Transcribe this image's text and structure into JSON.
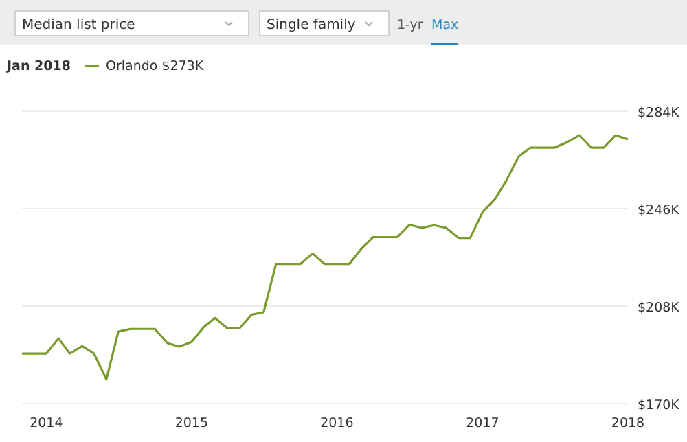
{
  "chart_data": {
    "type": "line",
    "legend_title": "Jan 2018",
    "legend": "top left",
    "grid": "y",
    "marker": "none",
    "line_style": "solid",
    "annotations": [
      "Median list price",
      "Single family",
      "1-yr",
      "Max"
    ],
    "x": [
      "2013-11",
      "2013-12",
      "2014-01",
      "2014-02",
      "2014-03",
      "2014-04",
      "2014-05",
      "2014-06",
      "2014-07",
      "2014-08",
      "2014-09",
      "2014-10",
      "2014-11",
      "2014-12",
      "2015-01",
      "2015-02",
      "2015-03",
      "2015-04",
      "2015-05",
      "2015-06",
      "2015-07",
      "2015-08",
      "2015-09",
      "2015-10",
      "2015-11",
      "2015-12",
      "2016-01",
      "2016-02",
      "2016-03",
      "2016-04",
      "2016-05",
      "2016-06",
      "2016-07",
      "2016-08",
      "2016-09",
      "2016-10",
      "2016-11",
      "2016-12",
      "2017-01",
      "2017-02",
      "2017-03",
      "2017-04",
      "2017-05",
      "2017-06",
      "2017-07",
      "2017-08",
      "2017-09",
      "2017-10",
      "2017-11",
      "2017-12",
      "2018-01"
    ],
    "xlim": [
      "2013-11",
      "2018-01"
    ],
    "xticks": [
      {
        "value": "2014-01",
        "label": "2014"
      },
      {
        "value": "2015-01",
        "label": "2015"
      },
      {
        "value": "2016-01",
        "label": "2016"
      },
      {
        "value": "2017-01",
        "label": "2017"
      },
      {
        "value": "2018-01",
        "label": "2018"
      }
    ],
    "ylim": [
      170,
      284
    ],
    "yticks": [
      {
        "value": 170,
        "label": "$170K"
      },
      {
        "value": 208,
        "label": "$208K"
      },
      {
        "value": 246,
        "label": "$246K"
      },
      {
        "value": 284,
        "label": "$284K"
      }
    ],
    "series": [
      {
        "name": "Orlando $273K",
        "color": "#7a9a2e",
        "values": [
          189.5,
          189.5,
          189.5,
          195.4,
          189.5,
          192.4,
          189.5,
          179.4,
          198.1,
          199.1,
          199.1,
          199.1,
          193.6,
          192.2,
          194,
          199.9,
          203.4,
          199.3,
          199.3,
          204.7,
          205.6,
          224.4,
          224.4,
          224.4,
          228.5,
          224.4,
          224.4,
          224.4,
          230.1,
          234.9,
          234.9,
          234.9,
          239.7,
          238.5,
          239.5,
          238.5,
          234.6,
          234.6,
          244.7,
          249.7,
          256.8,
          266.2,
          269.8,
          269.8,
          269.8,
          271.9,
          274.6,
          269.8,
          269.8,
          274.6,
          273
        ]
      }
    ]
  }
}
